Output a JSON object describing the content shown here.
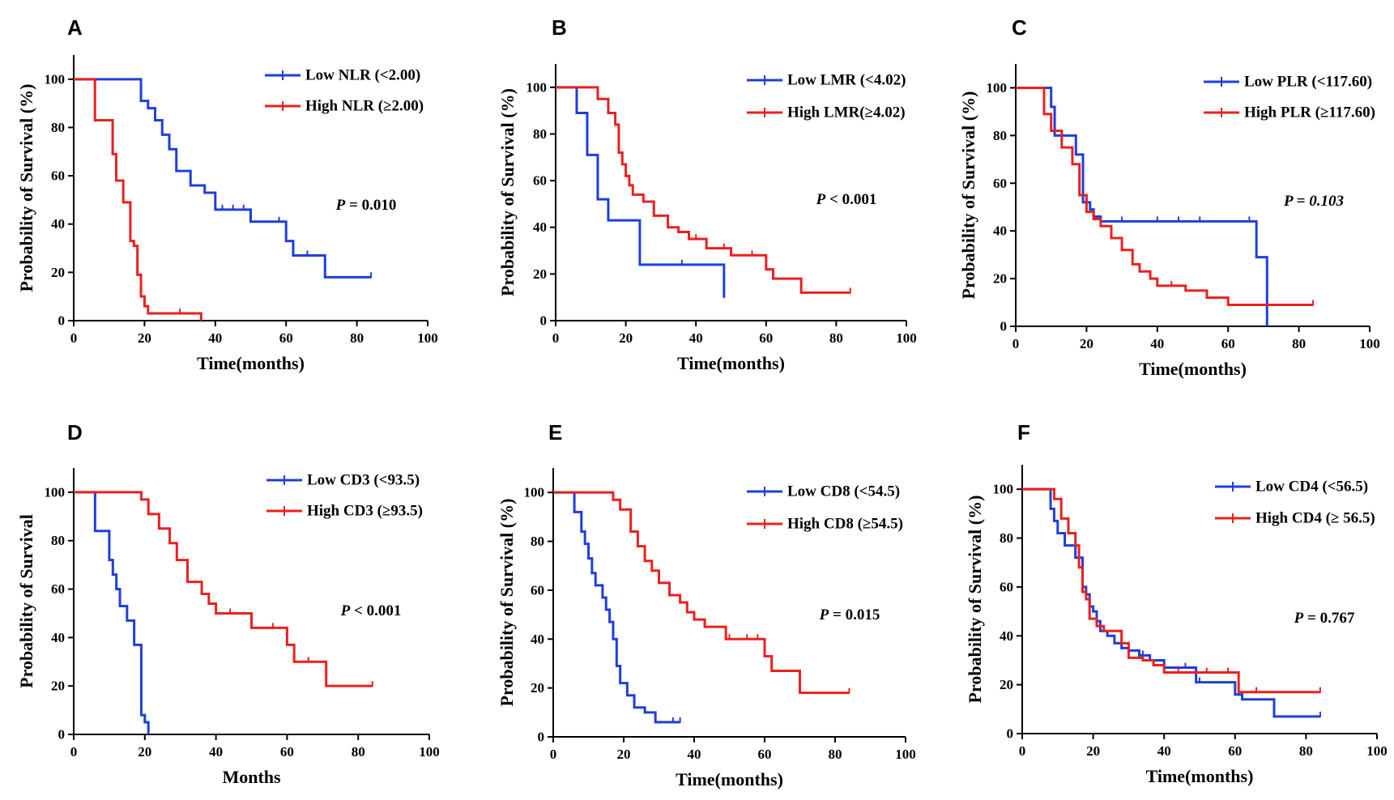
{
  "figure": {
    "panel_count": 6
  },
  "chart_data": [
    {
      "type": "line",
      "panel": "A",
      "title": "",
      "xlabel": "Time(months)",
      "ylabel": "Probability of Survival (%)",
      "xlim": [
        0,
        100
      ],
      "ylim": [
        0,
        110
      ],
      "xticks": [
        "0",
        "20",
        "40",
        "60",
        "80",
        "100"
      ],
      "yticks": [
        "0",
        "20",
        "40",
        "60",
        "80",
        "100"
      ],
      "p_label": "P",
      "p_value": " = 0.010",
      "p_italic": false,
      "series": [
        {
          "name": "Low NLR (<2.00)",
          "color": "#1f3fd9",
          "x": [
            0,
            19,
            21,
            23,
            25,
            27,
            29,
            33,
            37,
            40,
            46,
            50,
            56,
            60,
            62,
            71,
            84
          ],
          "y": [
            100,
            91,
            88,
            83,
            77,
            71,
            62,
            56,
            53,
            46,
            46,
            41,
            41,
            33,
            27,
            18,
            18
          ],
          "censor_x": [
            42,
            45,
            48,
            58,
            66,
            84
          ]
        },
        {
          "name": "High NLR (≥2.00)",
          "color": "#e8211f",
          "x": [
            0,
            5,
            6,
            10,
            11,
            12,
            14,
            16,
            17,
            18,
            19,
            20,
            21,
            36
          ],
          "y": [
            100,
            100,
            83,
            83,
            69,
            58,
            49,
            33,
            31,
            19,
            10,
            6,
            3,
            0
          ],
          "censor_x": [
            30
          ]
        }
      ]
    },
    {
      "type": "line",
      "panel": "B",
      "title": "",
      "xlabel": "Time(months)",
      "ylabel": "Probability of Survival (%)",
      "xlim": [
        0,
        100
      ],
      "ylim": [
        0,
        110
      ],
      "xticks": [
        "0",
        "20",
        "40",
        "60",
        "80",
        "100"
      ],
      "yticks": [
        "0",
        "20",
        "40",
        "60",
        "80",
        "100"
      ],
      "p_label": "P",
      "p_value": " < 0.001",
      "p_italic": false,
      "series": [
        {
          "name": "Low LMR (<4.02)",
          "color": "#1f3fd9",
          "x": [
            0,
            5,
            6,
            9,
            12,
            15,
            24,
            48
          ],
          "y": [
            100,
            100,
            89,
            71,
            52,
            43,
            24,
            10
          ],
          "censor_x": [
            36,
            48
          ]
        },
        {
          "name": "High LMR(≥4.02)",
          "color": "#e8211f",
          "x": [
            0,
            5,
            10,
            12,
            15,
            17,
            18,
            19,
            20,
            21,
            22,
            25,
            28,
            32,
            35,
            38,
            43,
            50,
            60,
            62,
            70,
            84
          ],
          "y": [
            100,
            100,
            100,
            95,
            89,
            84,
            72,
            67,
            62,
            58,
            54,
            51,
            45,
            40,
            38,
            35,
            31,
            28,
            22,
            18,
            12,
            12
          ],
          "censor_x": [
            40,
            48,
            56,
            84
          ]
        }
      ]
    },
    {
      "type": "line",
      "panel": "C",
      "title": "",
      "xlabel": "Time(months)",
      "ylabel": "Probability of Survival (%)",
      "xlim": [
        0,
        100
      ],
      "ylim": [
        0,
        110
      ],
      "xticks": [
        "0",
        "20",
        "40",
        "60",
        "80",
        "100"
      ],
      "yticks": [
        "0",
        "20",
        "40",
        "60",
        "80",
        "100"
      ],
      "p_label": "P",
      "p_value": " = 0.103",
      "p_italic": true,
      "series": [
        {
          "name": "Low PLR (<117.60)",
          "color": "#1f3fd9",
          "x": [
            0,
            9,
            10,
            11,
            15,
            17,
            19,
            20,
            21,
            22,
            24,
            35,
            61,
            68,
            71
          ],
          "y": [
            100,
            100,
            92,
            80,
            80,
            72,
            52,
            52,
            49,
            46,
            44,
            44,
            44,
            29,
            0
          ],
          "censor_x": [
            30,
            40,
            46,
            52,
            66
          ]
        },
        {
          "name": "High PLR (≥117.60)",
          "color": "#e8211f",
          "x": [
            0,
            5,
            8,
            10,
            13,
            16,
            18,
            20,
            22,
            24,
            27,
            30,
            33,
            35,
            38,
            40,
            48,
            54,
            60,
            84
          ],
          "y": [
            100,
            100,
            89,
            82,
            75,
            68,
            55,
            48,
            45,
            42,
            37,
            32,
            26,
            23,
            20,
            17,
            15,
            12,
            9,
            9
          ],
          "censor_x": [
            38,
            44,
            48,
            54,
            84
          ]
        }
      ]
    },
    {
      "type": "line",
      "panel": "D",
      "title": "",
      "xlabel": "Months",
      "ylabel": "Probability of Survival",
      "xlim": [
        0,
        100
      ],
      "ylim": [
        0,
        110
      ],
      "xticks": [
        "0",
        "20",
        "40",
        "60",
        "80",
        "100"
      ],
      "yticks": [
        "0",
        "20",
        "40",
        "60",
        "80",
        "100"
      ],
      "p_label": "P",
      "p_value": " < 0.001",
      "p_italic": false,
      "series": [
        {
          "name": "Low CD3 (<93.5)",
          "color": "#1f3fd9",
          "x": [
            0,
            4,
            6,
            9,
            10,
            11,
            12,
            13,
            15,
            17,
            19,
            20,
            21
          ],
          "y": [
            100,
            100,
            84,
            84,
            72,
            66,
            60,
            53,
            47,
            37,
            8,
            5,
            0
          ],
          "censor_x": []
        },
        {
          "name": "High CD3 (≥93.5)",
          "color": "#e8211f",
          "x": [
            0,
            15,
            19,
            21,
            24,
            27,
            29,
            32,
            36,
            38,
            40,
            48,
            50,
            60,
            62,
            71,
            84
          ],
          "y": [
            100,
            100,
            97,
            91,
            85,
            79,
            72,
            63,
            58,
            54,
            50,
            50,
            44,
            37,
            30,
            20,
            20
          ],
          "censor_x": [
            44,
            50,
            56,
            66,
            84
          ]
        }
      ]
    },
    {
      "type": "line",
      "panel": "E",
      "title": "",
      "xlabel": "Time(months)",
      "ylabel": "Probability of Survival (%)",
      "xlim": [
        0,
        100
      ],
      "ylim": [
        0,
        110
      ],
      "xticks": [
        "0",
        "20",
        "40",
        "60",
        "80",
        "100"
      ],
      "yticks": [
        "0",
        "20",
        "40",
        "60",
        "80",
        "100"
      ],
      "p_label": "P",
      "p_value": " = 0.015",
      "p_italic": false,
      "series": [
        {
          "name": "Low CD8 (<54.5)",
          "color": "#1f3fd9",
          "x": [
            0,
            4,
            6,
            8,
            9,
            10,
            11,
            12,
            14,
            15,
            16,
            17,
            18,
            19,
            21,
            23,
            26,
            29,
            36
          ],
          "y": [
            100,
            100,
            92,
            84,
            79,
            73,
            67,
            62,
            57,
            52,
            47,
            40,
            29,
            22,
            17,
            12,
            10,
            6,
            6
          ],
          "censor_x": [
            34,
            36
          ]
        },
        {
          "name": "High CD8 (≥54.5)",
          "color": "#e8211f",
          "x": [
            0,
            15,
            17,
            19,
            22,
            24,
            26,
            28,
            30,
            33,
            36,
            38,
            40,
            43,
            49,
            55,
            60,
            62,
            70,
            84
          ],
          "y": [
            100,
            100,
            97,
            93,
            84,
            78,
            72,
            68,
            63,
            58,
            55,
            51,
            48,
            45,
            40,
            40,
            33,
            27,
            18,
            18
          ],
          "censor_x": [
            50,
            55,
            58,
            84
          ]
        }
      ]
    },
    {
      "type": "line",
      "panel": "F",
      "title": "",
      "xlabel": "Time(months)",
      "ylabel": "Probability of Survival (%)",
      "xlim": [
        0,
        100
      ],
      "ylim": [
        0,
        110
      ],
      "xticks": [
        "0",
        "20",
        "40",
        "60",
        "80",
        "100"
      ],
      "yticks": [
        "0",
        "20",
        "40",
        "60",
        "80",
        "100"
      ],
      "p_label": "P",
      "p_value": " = 0.767",
      "p_italic": false,
      "series": [
        {
          "name": "Low CD4 (<56.5)",
          "color": "#1f3fd9",
          "x": [
            0,
            5,
            8,
            9,
            10,
            12,
            14,
            15,
            17,
            18,
            19,
            20,
            21,
            22,
            24,
            25,
            26,
            28,
            30,
            33,
            36,
            40,
            49,
            60,
            62,
            71,
            84
          ],
          "y": [
            100,
            100,
            92,
            87,
            82,
            77,
            77,
            72,
            60,
            57,
            52,
            50,
            46,
            42,
            40,
            40,
            37,
            35,
            34,
            32,
            30,
            27,
            21,
            16,
            14,
            7,
            7
          ],
          "censor_x": [
            34,
            46,
            50,
            84
          ]
        },
        {
          "name": "High CD4 (≥ 56.5)",
          "color": "#e8211f",
          "x": [
            0,
            6,
            9,
            11,
            13,
            15,
            16,
            17,
            18,
            19,
            21,
            23,
            25,
            28,
            30,
            34,
            37,
            40,
            45,
            55,
            61,
            84
          ],
          "y": [
            100,
            100,
            96,
            88,
            82,
            77,
            68,
            58,
            55,
            47,
            44,
            42,
            42,
            37,
            31,
            30,
            28,
            25,
            25,
            25,
            17,
            17
          ],
          "censor_x": [
            44,
            52,
            58,
            66,
            84
          ]
        }
      ]
    }
  ]
}
